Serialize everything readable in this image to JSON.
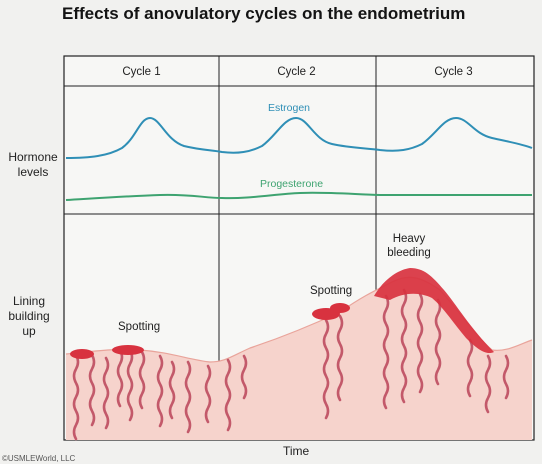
{
  "title": "Effects of anovulatory cycles on the endometrium",
  "cycles": [
    "Cycle 1",
    "Cycle 2",
    "Cycle 3"
  ],
  "hormone_axis_label": "Hormone levels",
  "lining_axis_label": "Lining building up",
  "x_axis_label": "Time",
  "estrogen_label": "Estrogen",
  "progesterone_label": "Progesterone",
  "spotting_1": "Spotting",
  "spotting_2": "Spotting",
  "heavy_bleeding": "Heavy bleeding",
  "copyright": "©USMLEWorld, LLC",
  "colors": {
    "estrogen": "#2f8fb6",
    "progesterone": "#3ea370",
    "lining": "#f6d3cc",
    "bleeding": "#d8323f"
  }
}
